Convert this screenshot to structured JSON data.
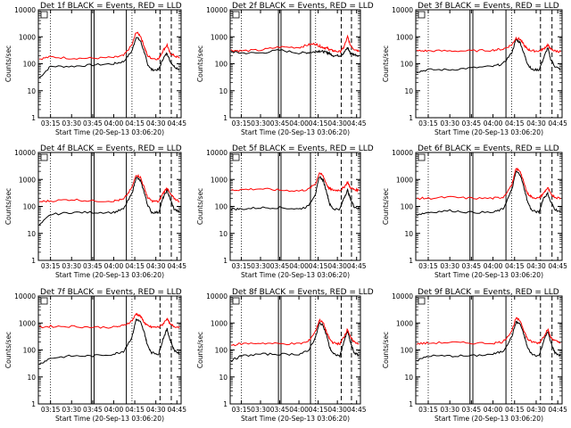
{
  "y_label": "Counts/sec",
  "x_label": "Start Time (20-Sep-13 03:06:20)",
  "y_ticks": [
    "1",
    "10",
    "100",
    "1000",
    "10000"
  ],
  "x_ticks": [
    "03:15",
    "03:30",
    "03:45",
    "04:00",
    "04:15",
    "04:30",
    "04:45"
  ],
  "series_colors": {
    "events": "#000000",
    "lld": "#ff0000"
  },
  "chart_data": [
    {
      "type": "line",
      "title": "Det 1f BLACK = Events, RED = LLD",
      "xlabel": "Start Time (20-Sep-13 03:06:20)",
      "ylabel": "Counts/sec",
      "y_scale": "log",
      "ylim": [
        1,
        10000
      ],
      "xlim": [
        "03:06:20",
        "04:48:00"
      ],
      "grid": false,
      "series": [
        {
          "color": "black",
          "x": [
            "03:07",
            "03:15",
            "03:30",
            "03:45",
            "04:00",
            "04:07",
            "04:13",
            "04:16",
            "04:19",
            "04:22",
            "04:24",
            "04:27",
            "04:32",
            "04:35",
            "04:38",
            "04:40",
            "04:43",
            "04:47"
          ],
          "values": [
            30,
            80,
            80,
            90,
            100,
            120,
            300,
            1000,
            700,
            250,
            100,
            60,
            60,
            150,
            250,
            130,
            80,
            60
          ]
        },
        {
          "color": "red",
          "x": [
            "03:07",
            "03:15",
            "03:30",
            "03:45",
            "04:00",
            "04:07",
            "04:13",
            "04:16",
            "04:19",
            "04:22",
            "04:24",
            "04:27",
            "04:32",
            "04:35",
            "04:38",
            "04:40",
            "04:43",
            "04:47"
          ],
          "values": [
            150,
            180,
            160,
            160,
            170,
            200,
            500,
            1500,
            1100,
            400,
            200,
            160,
            150,
            300,
            500,
            250,
            200,
            160
          ]
        }
      ]
    },
    {
      "type": "line",
      "title": "Det 2f BLACK = Events, RED = LLD",
      "xlabel": "Start Time (20-Sep-13 03:06:20)",
      "ylabel": "Counts/sec",
      "y_scale": "log",
      "ylim": [
        1,
        10000
      ],
      "xlim": [
        "03:06:20",
        "04:48:00"
      ],
      "grid": false,
      "series": [
        {
          "color": "black",
          "x": [
            "03:07",
            "03:15",
            "03:30",
            "03:45",
            "04:00",
            "04:07",
            "04:13",
            "04:16",
            "04:19",
            "04:22",
            "04:24",
            "04:27",
            "04:32",
            "04:35",
            "04:38",
            "04:40",
            "04:43",
            "04:47"
          ],
          "values": [
            280,
            250,
            250,
            320,
            250,
            260,
            280,
            300,
            280,
            260,
            240,
            200,
            200,
            250,
            400,
            250,
            220,
            200
          ]
        },
        {
          "color": "red",
          "x": [
            "03:07",
            "03:15",
            "03:30",
            "03:45",
            "04:00",
            "04:07",
            "04:13",
            "04:16",
            "04:19",
            "04:22",
            "04:24",
            "04:27",
            "04:32",
            "04:35",
            "04:38",
            "04:40",
            "04:43",
            "04:47"
          ],
          "values": [
            320,
            300,
            320,
            420,
            400,
            500,
            550,
            450,
            400,
            380,
            330,
            300,
            280,
            400,
            1000,
            500,
            350,
            300
          ]
        }
      ]
    },
    {
      "type": "line",
      "title": "Det 3f BLACK = Events, RED = LLD",
      "xlabel": "Start Time (20-Sep-13 03:06:20)",
      "ylabel": "Counts/sec",
      "y_scale": "log",
      "ylim": [
        1,
        10000
      ],
      "xlim": [
        "03:06:20",
        "04:48:00"
      ],
      "grid": false,
      "series": [
        {
          "color": "black",
          "x": [
            "03:07",
            "03:15",
            "03:30",
            "03:45",
            "04:00",
            "04:07",
            "04:13",
            "04:16",
            "04:19",
            "04:22",
            "04:24",
            "04:27",
            "04:32",
            "04:35",
            "04:38",
            "04:40",
            "04:43",
            "04:47"
          ],
          "values": [
            50,
            60,
            60,
            70,
            80,
            100,
            250,
            800,
            600,
            200,
            100,
            60,
            60,
            150,
            400,
            150,
            80,
            60
          ]
        },
        {
          "color": "red",
          "x": [
            "03:07",
            "03:15",
            "03:30",
            "03:45",
            "04:00",
            "04:07",
            "04:13",
            "04:16",
            "04:19",
            "04:22",
            "04:24",
            "04:27",
            "04:32",
            "04:35",
            "04:38",
            "04:40",
            "04:43",
            "04:47"
          ],
          "values": [
            300,
            300,
            300,
            300,
            320,
            350,
            500,
            900,
            800,
            450,
            350,
            300,
            300,
            350,
            500,
            350,
            300,
            280
          ]
        }
      ]
    },
    {
      "type": "line",
      "title": "Det 4f BLACK = Events, RED = LLD",
      "xlabel": "Start Time (20-Sep-13 03:06:20)",
      "ylabel": "Counts/sec",
      "y_scale": "log",
      "ylim": [
        1,
        10000
      ],
      "xlim": [
        "03:06:20",
        "04:48:00"
      ],
      "grid": false,
      "series": [
        {
          "color": "black",
          "x": [
            "03:07",
            "03:15",
            "03:30",
            "03:45",
            "04:00",
            "04:07",
            "04:13",
            "04:16",
            "04:19",
            "04:22",
            "04:24",
            "04:27",
            "04:32",
            "04:35",
            "04:38",
            "04:40",
            "04:43",
            "04:47"
          ],
          "values": [
            20,
            50,
            60,
            60,
            60,
            80,
            300,
            1200,
            900,
            300,
            120,
            60,
            60,
            200,
            400,
            200,
            80,
            60
          ]
        },
        {
          "color": "red",
          "x": [
            "03:07",
            "03:15",
            "03:30",
            "03:45",
            "04:00",
            "04:07",
            "04:13",
            "04:16",
            "04:19",
            "04:22",
            "04:24",
            "04:27",
            "04:32",
            "04:35",
            "04:38",
            "04:40",
            "04:43",
            "04:47"
          ],
          "values": [
            150,
            160,
            180,
            160,
            160,
            180,
            500,
            1500,
            1200,
            450,
            220,
            160,
            150,
            300,
            500,
            300,
            200,
            150
          ]
        }
      ]
    },
    {
      "type": "line",
      "title": "Det 5f BLACK = Events, RED = LLD",
      "xlabel": "Start Time (20-Sep-13 03:06:20)",
      "ylabel": "Counts/sec",
      "y_scale": "log",
      "ylim": [
        1,
        10000
      ],
      "xlim": [
        "03:06:20",
        "04:48:00"
      ],
      "grid": false,
      "series": [
        {
          "color": "black",
          "x": [
            "03:07",
            "03:15",
            "03:30",
            "03:45",
            "04:00",
            "04:07",
            "04:13",
            "04:16",
            "04:19",
            "04:22",
            "04:24",
            "04:27",
            "04:32",
            "04:35",
            "04:38",
            "04:40",
            "04:43",
            "04:47"
          ],
          "values": [
            80,
            80,
            90,
            90,
            80,
            100,
            300,
            1300,
            900,
            300,
            120,
            80,
            80,
            200,
            400,
            200,
            100,
            80
          ]
        },
        {
          "color": "red",
          "x": [
            "03:07",
            "03:15",
            "03:30",
            "03:45",
            "04:00",
            "04:07",
            "04:13",
            "04:16",
            "04:19",
            "04:22",
            "04:24",
            "04:27",
            "04:32",
            "04:35",
            "04:38",
            "04:40",
            "04:43",
            "04:47"
          ],
          "values": [
            400,
            420,
            450,
            400,
            380,
            420,
            700,
            1800,
            1300,
            600,
            450,
            400,
            400,
            500,
            800,
            500,
            420,
            400
          ]
        }
      ]
    },
    {
      "type": "line",
      "title": "Det 6f BLACK = Events, RED = LLD",
      "xlabel": "Start Time (20-Sep-13 03:06:20)",
      "ylabel": "Counts/sec",
      "y_scale": "log",
      "ylim": [
        1,
        10000
      ],
      "xlim": [
        "03:06:20",
        "04:48:00"
      ],
      "grid": false,
      "series": [
        {
          "color": "black",
          "x": [
            "03:07",
            "03:15",
            "03:30",
            "03:45",
            "04:00",
            "04:07",
            "04:13",
            "04:16",
            "04:19",
            "04:22",
            "04:24",
            "04:27",
            "04:32",
            "04:35",
            "04:38",
            "04:40",
            "04:43",
            "04:47"
          ],
          "values": [
            50,
            60,
            70,
            60,
            60,
            80,
            400,
            2000,
            1500,
            400,
            150,
            70,
            60,
            200,
            300,
            150,
            80,
            60
          ]
        },
        {
          "color": "red",
          "x": [
            "03:07",
            "03:15",
            "03:30",
            "03:45",
            "04:00",
            "04:07",
            "04:13",
            "04:16",
            "04:19",
            "04:22",
            "04:24",
            "04:27",
            "04:32",
            "04:35",
            "04:38",
            "04:40",
            "04:43",
            "04:47"
          ],
          "values": [
            200,
            200,
            220,
            200,
            200,
            220,
            600,
            2500,
            2000,
            600,
            300,
            220,
            200,
            300,
            500,
            300,
            220,
            200
          ]
        }
      ]
    },
    {
      "type": "line",
      "title": "Det 7f BLACK = Events, RED = LLD",
      "xlabel": "Start Time (20-Sep-13 03:06:20)",
      "ylabel": "Counts/sec",
      "y_scale": "log",
      "ylim": [
        1,
        10000
      ],
      "xlim": [
        "03:06:20",
        "04:48:00"
      ],
      "grid": false,
      "series": [
        {
          "color": "black",
          "x": [
            "03:07",
            "03:15",
            "03:30",
            "03:45",
            "04:00",
            "04:07",
            "04:13",
            "04:16",
            "04:19",
            "04:22",
            "04:24",
            "04:27",
            "04:32",
            "04:35",
            "04:38",
            "04:40",
            "04:43",
            "04:47"
          ],
          "values": [
            30,
            50,
            60,
            60,
            70,
            90,
            300,
            1400,
            1100,
            400,
            150,
            80,
            70,
            250,
            600,
            250,
            100,
            70
          ]
        },
        {
          "color": "red",
          "x": [
            "03:07",
            "03:15",
            "03:30",
            "03:45",
            "04:00",
            "04:07",
            "04:13",
            "04:16",
            "04:19",
            "04:22",
            "04:24",
            "04:27",
            "04:32",
            "04:35",
            "04:38",
            "04:40",
            "04:43",
            "04:47"
          ],
          "values": [
            700,
            750,
            750,
            700,
            700,
            800,
            1200,
            2200,
            1800,
            1000,
            800,
            700,
            700,
            900,
            1500,
            900,
            750,
            700
          ]
        }
      ]
    },
    {
      "type": "line",
      "title": "Det 8f BLACK = Events, RED = LLD",
      "xlabel": "Start Time (20-Sep-13 03:06:20)",
      "ylabel": "Counts/sec",
      "y_scale": "log",
      "ylim": [
        1,
        10000
      ],
      "xlim": [
        "03:06:20",
        "04:48:00"
      ],
      "grid": false,
      "series": [
        {
          "color": "black",
          "x": [
            "03:07",
            "03:15",
            "03:30",
            "03:45",
            "04:00",
            "04:07",
            "04:13",
            "04:16",
            "04:19",
            "04:22",
            "04:24",
            "04:27",
            "04:32",
            "04:35",
            "04:38",
            "04:40",
            "04:43",
            "04:47"
          ],
          "values": [
            40,
            60,
            70,
            70,
            70,
            90,
            300,
            1000,
            800,
            300,
            120,
            70,
            60,
            200,
            500,
            200,
            80,
            60
          ]
        },
        {
          "color": "red",
          "x": [
            "03:07",
            "03:15",
            "03:30",
            "03:45",
            "04:00",
            "04:07",
            "04:13",
            "04:16",
            "04:19",
            "04:22",
            "04:24",
            "04:27",
            "04:32",
            "04:35",
            "04:38",
            "04:40",
            "04:43",
            "04:47"
          ],
          "values": [
            150,
            170,
            180,
            170,
            170,
            200,
            500,
            1300,
            1000,
            400,
            250,
            180,
            170,
            300,
            600,
            300,
            200,
            170
          ]
        }
      ]
    },
    {
      "type": "line",
      "title": "Det 9f BLACK = Events, RED = LLD",
      "xlabel": "Start Time (20-Sep-13 03:06:20)",
      "ylabel": "Counts/sec",
      "y_scale": "log",
      "ylim": [
        1,
        10000
      ],
      "xlim": [
        "03:06:20",
        "04:48:00"
      ],
      "grid": false,
      "series": [
        {
          "color": "black",
          "x": [
            "03:07",
            "03:15",
            "03:30",
            "03:45",
            "04:00",
            "04:07",
            "04:13",
            "04:16",
            "04:19",
            "04:22",
            "04:24",
            "04:27",
            "04:32",
            "04:35",
            "04:38",
            "04:40",
            "04:43",
            "04:47"
          ],
          "values": [
            40,
            60,
            60,
            60,
            70,
            90,
            300,
            1100,
            900,
            300,
            120,
            70,
            60,
            200,
            500,
            200,
            80,
            60
          ]
        },
        {
          "color": "red",
          "x": [
            "03:07",
            "03:15",
            "03:30",
            "03:45",
            "04:00",
            "04:07",
            "04:13",
            "04:16",
            "04:19",
            "04:22",
            "04:24",
            "04:27",
            "04:32",
            "04:35",
            "04:38",
            "04:40",
            "04:43",
            "04:47"
          ],
          "values": [
            170,
            180,
            190,
            180,
            180,
            200,
            500,
            1500,
            1200,
            450,
            250,
            200,
            180,
            300,
            600,
            300,
            220,
            180
          ]
        }
      ]
    }
  ]
}
